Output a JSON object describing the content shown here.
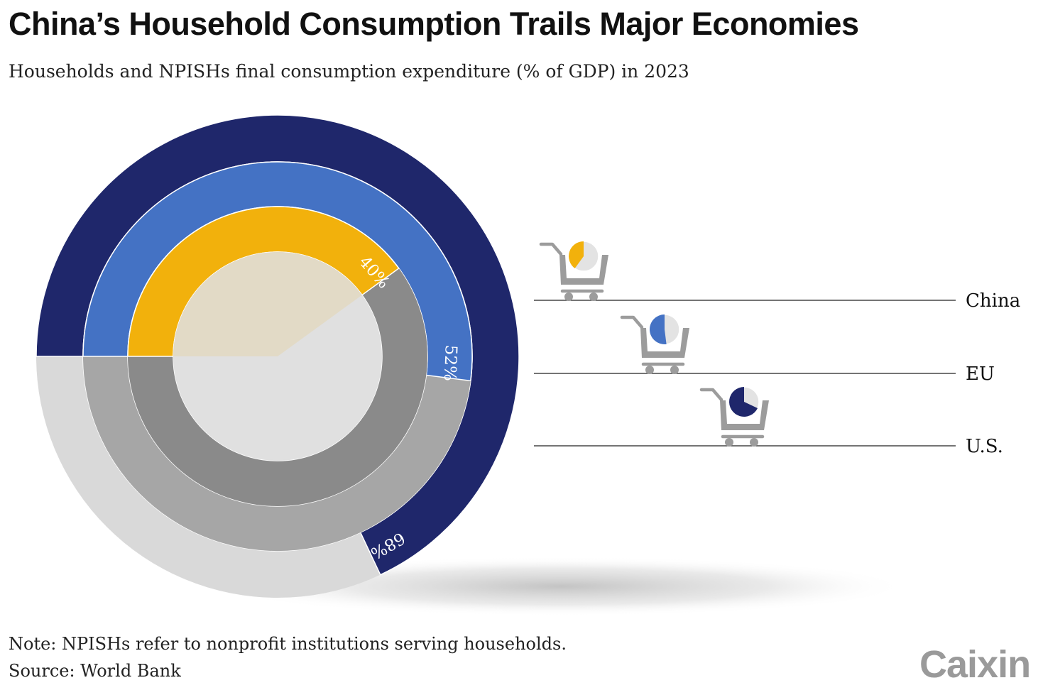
{
  "header": {
    "title": "China’s Household Consumption Trails Major Economies",
    "subtitle": "Households and NPISHs final consumption expenditure (% of GDP) in 2023"
  },
  "footer": {
    "note": "Note: NPISHs refer to nonprofit institutions serving households.",
    "source": "Source: World Bank",
    "brand": "Caixin"
  },
  "chart_data": {
    "type": "radial-bar",
    "title": "China’s Household Consumption Trails Major Economies",
    "subtitle": "Households and NPISHs final consumption expenditure (% of GDP) in 2023",
    "unit": "% of GDP",
    "year": 2023,
    "series": [
      {
        "name": "China",
        "value": 40,
        "label": "40%",
        "color": "#f2b10c",
        "track_color": "#8a8a8a"
      },
      {
        "name": "EU",
        "value": 52,
        "label": "52%",
        "color": "#4472c4",
        "track_color": "#a6a6a6"
      },
      {
        "name": "U.S.",
        "value": 68,
        "label": "68%",
        "color": "#1f276b",
        "track_color": "#d9d9d9"
      }
    ],
    "legend_icon": "shopping-cart-icon",
    "colors": {
      "center": "#e0e0e0",
      "center_highlight": "#e2dac6",
      "icon_gray": "#9c9c9c",
      "icon_pie_rest": "#e3e3e3",
      "leader_line": "#222222"
    }
  }
}
